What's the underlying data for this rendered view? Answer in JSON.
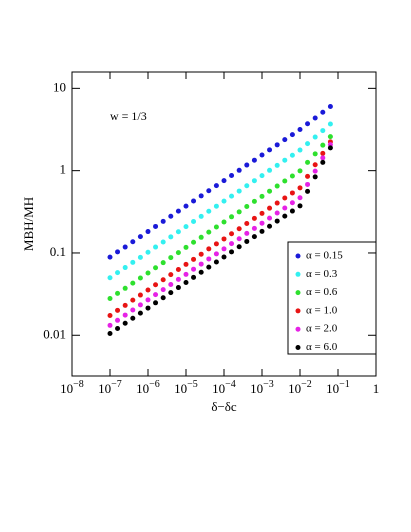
{
  "chart_data": {
    "type": "scatter",
    "annotation": "w = 1/3",
    "x_label": "δ−δc",
    "y_label": "MBH/MH",
    "xscale": "log",
    "yscale": "log",
    "xlim": [
      1e-08,
      1
    ],
    "ylim": [
      0.0032,
      15.8
    ],
    "xticks": [
      {
        "value": 1e-08,
        "label": "10-8"
      },
      {
        "value": 1e-07,
        "label": "10-7"
      },
      {
        "value": 1e-06,
        "label": "10-6"
      },
      {
        "value": 1e-05,
        "label": "10-5"
      },
      {
        "value": 0.0001,
        "label": "10-4"
      },
      {
        "value": 0.001,
        "label": "10-3"
      },
      {
        "value": 0.01,
        "label": "10-2"
      },
      {
        "value": 0.1,
        "label": "10-1"
      },
      1
    ],
    "yticks": [
      0.01,
      0.1,
      1,
      10
    ],
    "legend": "lower right",
    "x": [
      1e-07,
      1.58e-07,
      2.51e-07,
      3.98e-07,
      6.31e-07,
      1e-06,
      1.58e-06,
      2.51e-06,
      3.98e-06,
      6.31e-06,
      1e-05,
      1.58e-05,
      2.51e-05,
      3.98e-05,
      6.31e-05,
      0.0001,
      0.000158,
      0.000251,
      0.000398,
      0.000631,
      0.001,
      0.00158,
      0.00251,
      0.00398,
      0.00631,
      0.01,
      0.0158,
      0.0251,
      0.0398,
      0.0631
    ],
    "series": [
      {
        "name": "α = 0.15",
        "color": "#1a1ad8",
        "values": [
          0.089,
          0.103,
          0.118,
          0.137,
          0.158,
          0.182,
          0.21,
          0.242,
          0.279,
          0.322,
          0.371,
          0.428,
          0.494,
          0.57,
          0.658,
          0.757,
          0.874,
          1.01,
          1.17,
          1.34,
          1.55,
          1.79,
          2.06,
          2.38,
          2.74,
          3.16,
          3.71,
          4.36,
          5.13,
          6.02
        ]
      },
      {
        "name": "α = 0.3",
        "color": "#33f0f0",
        "values": [
          0.05,
          0.0577,
          0.0665,
          0.0768,
          0.0885,
          0.102,
          0.118,
          0.136,
          0.157,
          0.181,
          0.209,
          0.241,
          0.278,
          0.321,
          0.37,
          0.426,
          0.491,
          0.565,
          0.655,
          0.755,
          0.87,
          1.01,
          1.16,
          1.34,
          1.54,
          1.78,
          2.13,
          2.56,
          3.07,
          3.69
        ]
      },
      {
        "name": "α = 0.6",
        "color": "#2ee02e",
        "values": [
          0.028,
          0.0323,
          0.0372,
          0.043,
          0.0496,
          0.0571,
          0.0661,
          0.0762,
          0.0879,
          0.101,
          0.117,
          0.135,
          0.155,
          0.179,
          0.207,
          0.238,
          0.275,
          0.316,
          0.367,
          0.423,
          0.487,
          0.563,
          0.65,
          0.748,
          0.862,
          0.994,
          1.26,
          1.6,
          2.04,
          2.59
        ]
      },
      {
        "name": "α = 1.0",
        "color": "#e81414",
        "values": [
          0.0174,
          0.0201,
          0.0231,
          0.0267,
          0.0308,
          0.0355,
          0.0411,
          0.0473,
          0.0546,
          0.063,
          0.0726,
          0.0837,
          0.0966,
          0.112,
          0.129,
          0.148,
          0.171,
          0.197,
          0.228,
          0.263,
          0.303,
          0.35,
          0.404,
          0.465,
          0.536,
          0.618,
          0.853,
          1.18,
          1.62,
          2.24
        ]
      },
      {
        "name": "α = 2.0",
        "color": "#e622e6",
        "values": [
          0.0132,
          0.0152,
          0.0176,
          0.0203,
          0.0234,
          0.0269,
          0.0312,
          0.0359,
          0.0414,
          0.0478,
          0.055,
          0.0635,
          0.0733,
          0.0846,
          0.0975,
          0.112,
          0.13,
          0.149,
          0.173,
          0.199,
          0.23,
          0.265,
          0.306,
          0.352,
          0.407,
          0.469,
          0.68,
          0.986,
          1.43,
          2.07
        ]
      },
      {
        "name": "α = 6.0",
        "color": "#000000",
        "values": [
          0.0105,
          0.0121,
          0.014,
          0.0161,
          0.0186,
          0.0214,
          0.0248,
          0.0286,
          0.033,
          0.038,
          0.0438,
          0.0505,
          0.0583,
          0.0673,
          0.0776,
          0.0894,
          0.103,
          0.119,
          0.138,
          0.158,
          0.183,
          0.211,
          0.244,
          0.28,
          0.323,
          0.373,
          0.56,
          0.84,
          1.26,
          1.89
        ]
      }
    ]
  }
}
